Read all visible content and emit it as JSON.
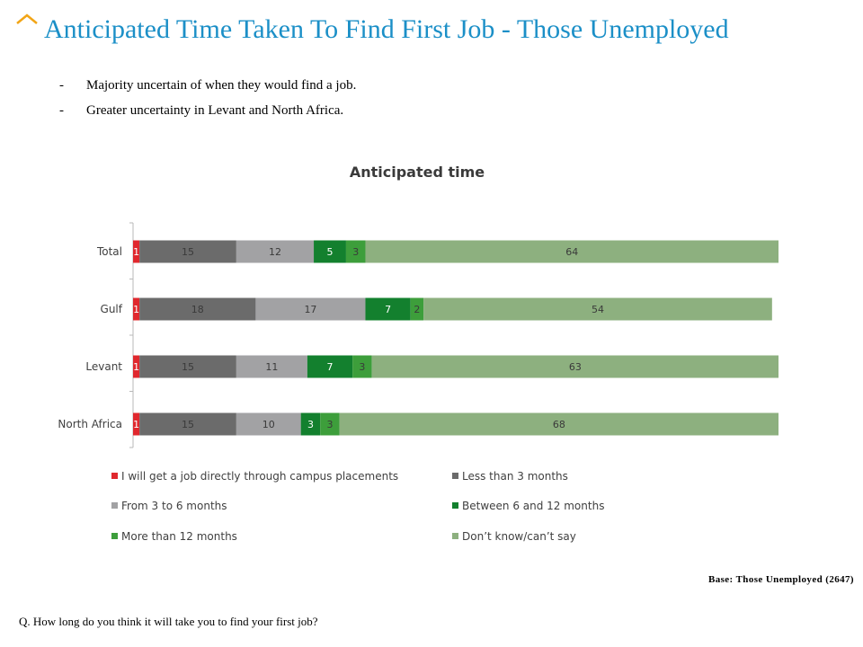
{
  "slide": {
    "title": "Anticipated Time Taken To Find First Job - Those Unemployed",
    "accent_color": "#1b8fc7",
    "caret_icon": "chevron-up-icon"
  },
  "bullets": [
    {
      "marker": "-",
      "text": "Majority  uncertain of when they would find a job."
    },
    {
      "marker": "-",
      "text": "Greater  uncertainty in Levant and North Africa."
    }
  ],
  "chart_data": {
    "type": "bar",
    "orientation": "horizontal",
    "stacked": true,
    "title": "Anticipated time",
    "categories": [
      "Total",
      "Gulf",
      "Levant",
      "North Africa"
    ],
    "series": [
      {
        "name": "I will get a job directly through campus placements",
        "color": "#e0282e",
        "values": [
          1,
          1,
          1,
          1
        ]
      },
      {
        "name": "Less than 3 months",
        "color": "#6b6b6b",
        "values": [
          15,
          18,
          15,
          15
        ]
      },
      {
        "name": "From 3 to 6 months",
        "color": "#a2a2a4",
        "values": [
          12,
          17,
          11,
          10
        ]
      },
      {
        "name": "Between 6 and 12 months",
        "color": "#13802e",
        "values": [
          5,
          7,
          7,
          3
        ]
      },
      {
        "name": "More than 12 months",
        "color": "#3d9e3b",
        "values": [
          3,
          2,
          3,
          3
        ]
      },
      {
        "name": "Don’t know/can’t say",
        "color": "#8db07f",
        "values": [
          64,
          54,
          63,
          68
        ]
      }
    ],
    "legend_position": "bottom",
    "xlim": [
      0,
      100
    ],
    "grid": false
  },
  "footer": {
    "base": "Base: Those Unemployed (2647)",
    "question": "Q. How long do you think it will take you to find your first job?"
  }
}
